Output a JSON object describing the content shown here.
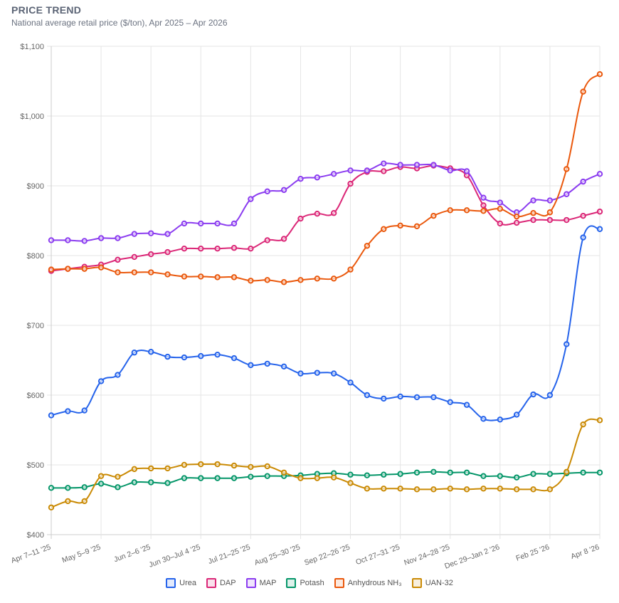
{
  "header": {
    "title": "PRICE TREND",
    "subtitle": "National average retail price ($/ton), Apr 2025 – Apr 2026"
  },
  "chart_data": {
    "type": "line",
    "title": "PRICE TREND",
    "subtitle": "National average retail price ($/ton), Apr 2025 – Apr 2026",
    "xlabel": "",
    "ylabel": "",
    "ylim": [
      400,
      1100
    ],
    "y_ticks": [
      "$400",
      "$500",
      "$600",
      "$700",
      "$800",
      "$900",
      "$1,000",
      "$1,100"
    ],
    "y_tick_values": [
      400,
      500,
      600,
      700,
      800,
      900,
      1000,
      1100
    ],
    "x_tick_labels": [
      "Apr 7–11 '25",
      "May 5–9 '25",
      "Jun 2–6 '25",
      "Jun 30–Jul 4 '25",
      "Jul 21–25 '25",
      "Aug 25–30 '25",
      "Sep 22–26 '25",
      "Oct 27–31 '25",
      "Nov 24–28 '25",
      "Dec 29–Jan 2 '26",
      "Feb 25 '26",
      "Apr 8 '26"
    ],
    "x_tick_every": 3,
    "grid": true,
    "legend_position": "bottom",
    "series": [
      {
        "name": "Urea",
        "color": "#2563eb",
        "values": [
          571,
          577,
          578,
          620,
          629,
          661,
          662,
          655,
          654,
          656,
          658,
          653,
          643,
          645,
          641,
          631,
          632,
          631,
          618,
          600,
          595,
          598,
          597,
          597,
          590,
          586,
          566,
          565,
          572,
          601,
          600,
          673,
          826,
          838
        ]
      },
      {
        "name": "DAP",
        "color": "#db2777",
        "values": [
          778,
          781,
          784,
          787,
          794,
          798,
          802,
          805,
          810,
          810,
          810,
          811,
          810,
          822,
          824,
          853,
          860,
          861,
          903,
          920,
          921,
          927,
          925,
          929,
          925,
          915,
          872,
          846,
          847,
          851,
          851,
          851,
          857,
          863
        ]
      },
      {
        "name": "MAP",
        "color": "#8b3cf0",
        "values": [
          822,
          822,
          821,
          825,
          825,
          831,
          832,
          831,
          846,
          846,
          846,
          846,
          881,
          892,
          894,
          910,
          912,
          917,
          922,
          922,
          932,
          930,
          930,
          930,
          922,
          921,
          883,
          876,
          862,
          879,
          879,
          888,
          906,
          917
        ]
      },
      {
        "name": "Potash",
        "color": "#059669",
        "values": [
          467,
          467,
          468,
          473,
          468,
          475,
          475,
          474,
          481,
          481,
          481,
          481,
          483,
          484,
          484,
          485,
          487,
          488,
          486,
          485,
          486,
          487,
          489,
          490,
          489,
          489,
          484,
          484,
          482,
          487,
          487,
          488,
          489,
          489
        ]
      },
      {
        "name": "Anhydrous NH₃",
        "color": "#ea580c",
        "values": [
          780,
          781,
          781,
          783,
          776,
          776,
          776,
          773,
          770,
          770,
          769,
          769,
          764,
          765,
          762,
          765,
          767,
          767,
          780,
          814,
          838,
          843,
          842,
          857,
          865,
          865,
          864,
          867,
          856,
          861,
          862,
          924,
          1035,
          1060
        ]
      },
      {
        "name": "UAN-32",
        "color": "#ca8a04",
        "values": [
          439,
          448,
          448,
          484,
          483,
          494,
          495,
          495,
          500,
          501,
          501,
          499,
          497,
          498,
          489,
          481,
          481,
          482,
          474,
          466,
          466,
          466,
          465,
          465,
          466,
          465,
          466,
          466,
          465,
          465,
          465,
          490,
          558,
          564
        ]
      }
    ]
  }
}
